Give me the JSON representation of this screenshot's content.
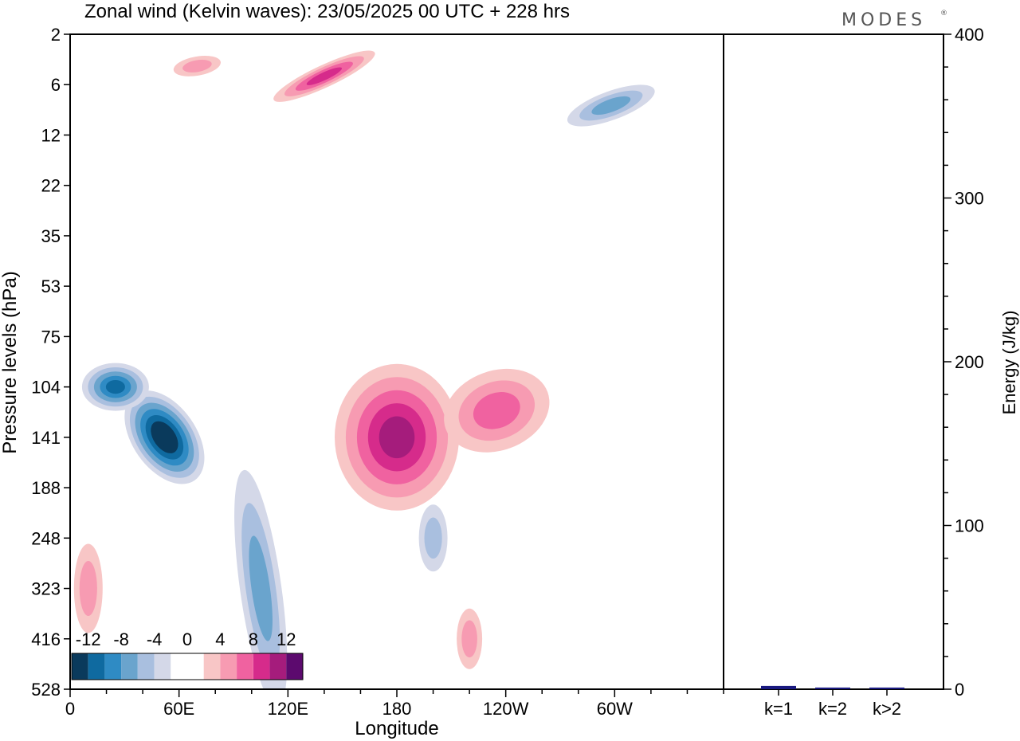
{
  "title": "Zonal wind (Kelvin waves):  23/05/2025  00 UTC  + 228 hrs",
  "logo": "MODES",
  "logo_mark": "®",
  "chart_data": [
    {
      "type": "heatmap",
      "xlabel": "Longitude",
      "ylabel": "Pressure levels (hPa)",
      "x_ticks": [
        "0",
        "60E",
        "120E",
        "180",
        "120W",
        "60W"
      ],
      "y_ticks": [
        "2",
        "6",
        "12",
        "22",
        "35",
        "53",
        "75",
        "104",
        "141",
        "188",
        "248",
        "323",
        "416",
        "528"
      ],
      "colorbar": {
        "labels": [
          "-12",
          "-8",
          "-4",
          "0",
          "4",
          "8",
          "12"
        ],
        "colors": [
          "#0a3a5c",
          "#0f6aa0",
          "#2f8bc4",
          "#6aa4cd",
          "#a9bfdf",
          "#d4d8e8",
          "#ffffff",
          "#ffffff",
          "#f8c6c6",
          "#f79bb2",
          "#f062a0",
          "#d62b8b",
          "#a51c7c",
          "#5c0a6e"
        ]
      },
      "features": [
        {
          "sign": "negative",
          "peak": -14,
          "lon": 52,
          "level": 141
        },
        {
          "sign": "negative",
          "peak": -10,
          "lon": 25,
          "level": 104
        },
        {
          "sign": "negative",
          "peak": -6,
          "lon": 105,
          "level": 323
        },
        {
          "sign": "negative",
          "peak": -6,
          "lon": 298,
          "level": 8
        },
        {
          "sign": "negative",
          "peak": -4,
          "lon": 200,
          "level": 248
        },
        {
          "sign": "positive",
          "peak": 10,
          "lon": 180,
          "level": 141
        },
        {
          "sign": "positive",
          "peak": 8,
          "lon": 140,
          "level": 5
        },
        {
          "sign": "positive",
          "peak": 6,
          "lon": 235,
          "level": 120
        },
        {
          "sign": "positive",
          "peak": 4,
          "lon": 220,
          "level": 416
        }
      ]
    },
    {
      "type": "bar",
      "ylabel": "Energy (J/kg)",
      "ylim": [
        0,
        400
      ],
      "y_ticks": [
        "0",
        "100",
        "200",
        "300",
        "400"
      ],
      "categories": [
        "k=1",
        "k=2",
        "k>2"
      ],
      "values": [
        2,
        1,
        1
      ],
      "bar_color": "#1a1a80"
    }
  ]
}
